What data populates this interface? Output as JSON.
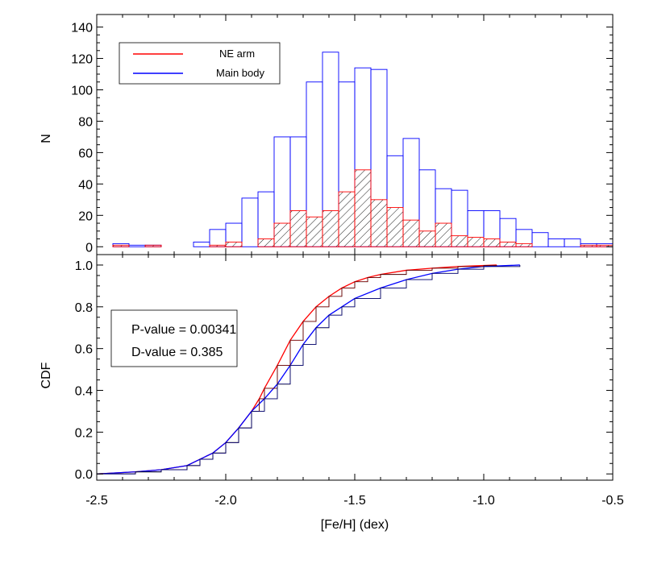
{
  "colors": {
    "ne_arm": "#ff0000",
    "main_body": "#0000ff",
    "axes": "#000000",
    "hatch": "#000000"
  },
  "chart_data": [
    {
      "type": "histogram",
      "ylabel": "N",
      "xlim": [
        -2.5,
        -0.5
      ],
      "ylim": [
        -5,
        148
      ],
      "bin_width": 0.0625,
      "bin_edges_start": -2.5,
      "yticks": [
        0,
        20,
        40,
        60,
        80,
        100,
        120,
        140
      ],
      "ytick_labels": [
        "0",
        "20",
        "40",
        "60",
        "80",
        "100",
        "120",
        "140"
      ],
      "legend": {
        "placement": "top-left",
        "entries": [
          {
            "label": "NE arm",
            "color": "#ff0000"
          },
          {
            "label": "Main body",
            "color": "#0000ff"
          }
        ]
      },
      "series": [
        {
          "name": "Main body",
          "color": "#0000ff",
          "fill": "none",
          "values": [
            0,
            2,
            1,
            1,
            0,
            0,
            3,
            11,
            15,
            31,
            35,
            70,
            70,
            105,
            124,
            105,
            114,
            113,
            58,
            69,
            49,
            37,
            36,
            23,
            23,
            18,
            11,
            9,
            5,
            5,
            2,
            2
          ]
        },
        {
          "name": "NE arm",
          "color": "#ff0000",
          "fill": "hatch",
          "values": [
            0,
            1,
            0,
            1,
            0,
            0,
            0,
            1,
            3,
            0,
            5,
            15,
            23,
            19,
            23,
            35,
            49,
            30,
            25,
            17,
            10,
            15,
            7,
            6,
            5,
            3,
            2,
            0,
            0,
            0,
            1,
            1
          ]
        }
      ]
    },
    {
      "type": "line",
      "ylabel": "CDF",
      "xlabel": "[Fe/H] (dex)",
      "xlim": [
        -2.5,
        -0.5
      ],
      "ylim": [
        -0.03,
        1.05
      ],
      "xticks": [
        -2.5,
        -2.0,
        -1.5,
        -1.0,
        -0.5
      ],
      "xtick_labels": [
        "-2.5",
        "-2.0",
        "-1.5",
        "-1.0",
        "-0.5"
      ],
      "yticks": [
        0.0,
        0.2,
        0.4,
        0.6,
        0.8,
        1.0
      ],
      "ytick_labels": [
        "0.0",
        "0.2",
        "0.4",
        "0.6",
        "0.8",
        "1.0"
      ],
      "series": [
        {
          "name": "NE arm",
          "color": "#ff0000",
          "style": "smooth",
          "x": [
            -2.5,
            -2.35,
            -2.25,
            -2.15,
            -2.1,
            -2.05,
            -2.0,
            -1.95,
            -1.9,
            -1.87,
            -1.85,
            -1.8,
            -1.75,
            -1.7,
            -1.65,
            -1.6,
            -1.55,
            -1.5,
            -1.45,
            -1.4,
            -1.3,
            -1.2,
            -1.1,
            -1.0,
            -0.95
          ],
          "y": [
            0.0,
            0.01,
            0.02,
            0.04,
            0.07,
            0.1,
            0.15,
            0.22,
            0.3,
            0.36,
            0.41,
            0.52,
            0.64,
            0.73,
            0.8,
            0.85,
            0.89,
            0.92,
            0.94,
            0.955,
            0.975,
            0.985,
            0.993,
            0.998,
            1.0
          ]
        },
        {
          "name": "Main body",
          "color": "#0000ff",
          "style": "smooth",
          "x": [
            -2.5,
            -2.35,
            -2.25,
            -2.15,
            -2.1,
            -2.05,
            -2.0,
            -1.95,
            -1.9,
            -1.85,
            -1.8,
            -1.75,
            -1.7,
            -1.65,
            -1.6,
            -1.55,
            -1.5,
            -1.4,
            -1.3,
            -1.2,
            -1.1,
            -1.0,
            -0.86
          ],
          "y": [
            0.0,
            0.01,
            0.02,
            0.04,
            0.07,
            0.1,
            0.15,
            0.22,
            0.3,
            0.36,
            0.43,
            0.52,
            0.62,
            0.7,
            0.76,
            0.8,
            0.84,
            0.89,
            0.93,
            0.96,
            0.98,
            0.993,
            1.0
          ]
        },
        {
          "name": "NE arm (empirical)",
          "color": "#ff0000",
          "style": "step",
          "x": [
            -2.5,
            -2.35,
            -2.25,
            -2.15,
            -2.1,
            -2.05,
            -2.0,
            -1.95,
            -1.9,
            -1.87,
            -1.85,
            -1.8,
            -1.75,
            -1.7,
            -1.65,
            -1.6,
            -1.55,
            -1.5,
            -1.45,
            -1.4,
            -1.3,
            -1.2,
            -1.1,
            -1.0,
            -0.95
          ],
          "y": [
            0.0,
            0.01,
            0.02,
            0.04,
            0.07,
            0.1,
            0.15,
            0.22,
            0.3,
            0.36,
            0.41,
            0.52,
            0.64,
            0.73,
            0.8,
            0.85,
            0.89,
            0.92,
            0.94,
            0.955,
            0.975,
            0.985,
            0.993,
            0.998,
            1.0
          ]
        },
        {
          "name": "Main body (empirical)",
          "color": "#0000ff",
          "style": "step",
          "x": [
            -2.5,
            -2.35,
            -2.25,
            -2.15,
            -2.1,
            -2.05,
            -2.0,
            -1.95,
            -1.9,
            -1.85,
            -1.8,
            -1.75,
            -1.7,
            -1.65,
            -1.6,
            -1.55,
            -1.5,
            -1.4,
            -1.3,
            -1.2,
            -1.1,
            -1.0,
            -0.86
          ],
          "y": [
            0.0,
            0.01,
            0.02,
            0.04,
            0.07,
            0.1,
            0.15,
            0.22,
            0.3,
            0.36,
            0.43,
            0.52,
            0.62,
            0.7,
            0.76,
            0.8,
            0.84,
            0.89,
            0.93,
            0.96,
            0.98,
            0.993,
            1.0
          ]
        }
      ],
      "annotations": [
        "P-value = 0.00341",
        "D-value = 0.385"
      ]
    }
  ]
}
